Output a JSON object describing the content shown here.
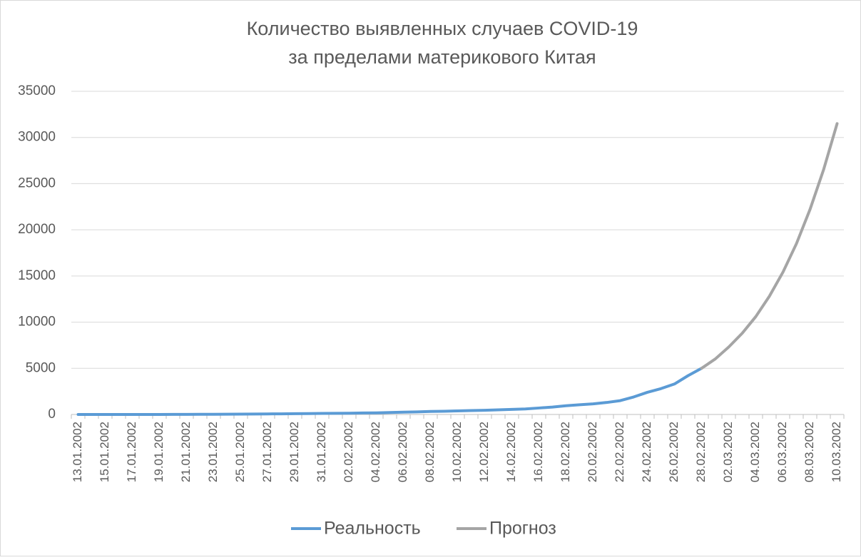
{
  "chart_data": {
    "type": "line",
    "title": [
      "Количество выявленных случаев COVID-19",
      "за пределами материкового Китая"
    ],
    "categories": [
      "13.01.2002",
      null,
      "15.01.2002",
      null,
      "17.01.2002",
      null,
      "19.01.2002",
      null,
      "21.01.2002",
      null,
      "23.01.2002",
      null,
      "25.01.2002",
      null,
      "27.01.2002",
      null,
      "29.01.2002",
      null,
      "31.01.2002",
      null,
      "02.02.2002",
      null,
      "04.02.2002",
      null,
      "06.02.2002",
      null,
      "08.02.2002",
      null,
      "10.02.2002",
      null,
      "12.02.2002",
      null,
      "14.02.2002",
      null,
      "16.02.2002",
      null,
      "18.02.2002",
      null,
      "20.02.2002",
      null,
      "22.02.2002",
      null,
      "24.02.2002",
      null,
      "26.02.2002",
      null,
      "28.02.2002",
      null,
      "02.03.2002",
      null,
      "04.03.2002",
      null,
      "06.03.2002",
      null,
      "08.03.2002",
      null,
      "10.03.2002"
    ],
    "series": [
      {
        "name": "Реальность",
        "color": "#5b9bd5",
        "values": [
          1,
          1,
          1,
          1,
          2,
          3,
          5,
          7,
          10,
          15,
          20,
          30,
          40,
          50,
          60,
          70,
          90,
          100,
          120,
          130,
          140,
          160,
          170,
          210,
          250,
          280,
          330,
          350,
          390,
          420,
          450,
          500,
          550,
          600,
          700,
          800,
          950,
          1050,
          1150,
          1300,
          1500,
          1900,
          2400,
          2800,
          3300,
          4200,
          5000,
          null,
          null,
          null,
          null,
          null,
          null,
          null,
          null,
          null,
          null
        ]
      },
      {
        "name": "Прогноз",
        "color": "#a5a5a5",
        "values": [
          null,
          null,
          null,
          null,
          null,
          null,
          null,
          null,
          null,
          null,
          null,
          null,
          null,
          null,
          null,
          null,
          null,
          null,
          null,
          null,
          null,
          null,
          null,
          null,
          null,
          null,
          null,
          null,
          null,
          null,
          null,
          null,
          null,
          null,
          null,
          null,
          null,
          null,
          null,
          null,
          null,
          null,
          null,
          null,
          null,
          null,
          5000,
          6000,
          7300,
          8800,
          10600,
          12800,
          15400,
          18500,
          22200,
          26500,
          31500
        ]
      }
    ],
    "ylim": [
      0,
      35000
    ],
    "yticks": [
      0,
      5000,
      10000,
      15000,
      20000,
      25000,
      30000,
      35000
    ],
    "grid": true,
    "legend": "bottom"
  }
}
